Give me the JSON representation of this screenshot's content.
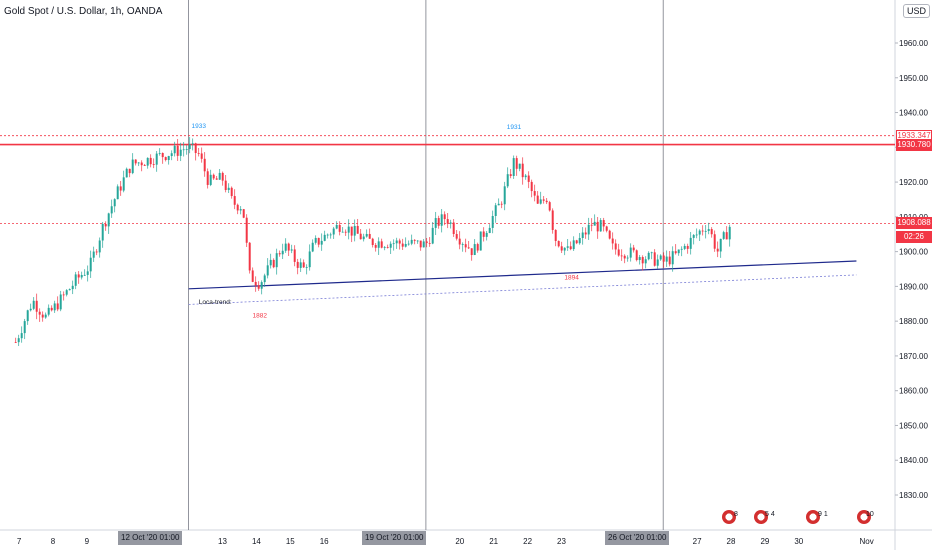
{
  "header": {
    "title": "Gold Spot / U.S. Dollar, 1h, OANDA",
    "currency_button": "USD"
  },
  "price_tags": [
    {
      "label": "1933.347",
      "style": "outline"
    },
    {
      "label": "1930.780",
      "style": "solid"
    },
    {
      "label": "1908.088",
      "style": "solid"
    },
    {
      "label": "02:26",
      "style": "solid"
    }
  ],
  "time_tags": [
    "12 Oct '20  01:00",
    "19 Oct '20  01:00",
    "26 Oct '20  01:00"
  ],
  "event_counts": [
    "8",
    "5  4",
    "9 1",
    "10"
  ],
  "colors": {
    "up": "#26a69a",
    "down": "#f23645",
    "trend": "#1f2a8c",
    "level": "#f23645",
    "current": "#f23645"
  },
  "chart_data": {
    "type": "candlestick",
    "symbol": "XAUUSD",
    "timeframe": "1h",
    "ylim": [
      1821,
      1970
    ],
    "y_ticks": [
      1830,
      1840,
      1850,
      1860,
      1870,
      1880,
      1890,
      1900,
      1910,
      1920,
      1930,
      1940,
      1950,
      1960
    ],
    "x_ticks": [
      {
        "label": "7",
        "day": 7
      },
      {
        "label": "8",
        "day": 8
      },
      {
        "label": "9",
        "day": 9
      },
      {
        "label": "13",
        "day": 13
      },
      {
        "label": "14",
        "day": 14
      },
      {
        "label": "15",
        "day": 15
      },
      {
        "label": "16",
        "day": 16
      },
      {
        "label": "20",
        "day": 20
      },
      {
        "label": "21",
        "day": 21
      },
      {
        "label": "22",
        "day": 22
      },
      {
        "label": "23",
        "day": 23
      },
      {
        "label": "27",
        "day": 27
      },
      {
        "label": "28",
        "day": 28
      },
      {
        "label": "29",
        "day": 29
      },
      {
        "label": "30",
        "day": 30
      },
      {
        "label": "Nov",
        "day": 32
      }
    ],
    "vertical_lines": [
      {
        "day": 12
      },
      {
        "day": 19
      },
      {
        "day": 26
      }
    ],
    "horizontal_levels": [
      {
        "price": 1933.347,
        "style": "dotted"
      },
      {
        "price": 1930.78,
        "style": "solid"
      },
      {
        "price": 1908.088,
        "style": "dotted"
      }
    ],
    "trendlines": [
      {
        "from": {
          "day": 12,
          "price": 1889.3
        },
        "to": {
          "day": 31.7,
          "price": 1897.3
        },
        "style": "solid"
      },
      {
        "from": {
          "day": 12,
          "price": 1884.8
        },
        "to": {
          "day": 31.7,
          "price": 1893.3
        },
        "style": "dotted"
      }
    ],
    "annotations": [
      {
        "text": "1933",
        "day": 12.3,
        "price": 1935.5,
        "color": "#2196f3"
      },
      {
        "text": "1931",
        "day": 21.6,
        "price": 1935.2,
        "color": "#2196f3"
      },
      {
        "text": "1882",
        "day": 14.1,
        "price": 1881,
        "color": "#f23645"
      },
      {
        "text": "1894",
        "day": 23.3,
        "price": 1892,
        "color": "#f23645"
      },
      {
        "text": "Loca-trend:",
        "day": 12.3,
        "price": 1885,
        "color": "#131722"
      }
    ],
    "path": [
      {
        "day": 6.9,
        "price": 1874
      },
      {
        "day": 7.4,
        "price": 1886
      },
      {
        "day": 7.8,
        "price": 1881
      },
      {
        "day": 8.3,
        "price": 1887
      },
      {
        "day": 8.7,
        "price": 1892
      },
      {
        "day": 9.1,
        "price": 1896
      },
      {
        "day": 9.5,
        "price": 1908
      },
      {
        "day": 9.9,
        "price": 1917
      },
      {
        "day": 10.3,
        "price": 1925
      },
      {
        "day": 12.0,
        "price": 1930
      },
      {
        "day": 12.3,
        "price": 1928
      },
      {
        "day": 12.6,
        "price": 1920
      },
      {
        "day": 13.0,
        "price": 1921
      },
      {
        "day": 13.3,
        "price": 1914
      },
      {
        "day": 13.6,
        "price": 1913
      },
      {
        "day": 13.8,
        "price": 1893
      },
      {
        "day": 14.1,
        "price": 1891
      },
      {
        "day": 14.5,
        "price": 1897
      },
      {
        "day": 14.8,
        "price": 1902
      },
      {
        "day": 15.1,
        "price": 1898
      },
      {
        "day": 15.4,
        "price": 1895
      },
      {
        "day": 15.7,
        "price": 1902
      },
      {
        "day": 16.1,
        "price": 1905
      },
      {
        "day": 16.5,
        "price": 1908
      },
      {
        "day": 16.8,
        "price": 1906
      },
      {
        "day": 17.3,
        "price": 1903
      },
      {
        "day": 19.0,
        "price": 1902
      },
      {
        "day": 19.3,
        "price": 1908
      },
      {
        "day": 19.6,
        "price": 1910
      },
      {
        "day": 20.0,
        "price": 1904
      },
      {
        "day": 20.4,
        "price": 1900
      },
      {
        "day": 20.8,
        "price": 1907
      },
      {
        "day": 21.2,
        "price": 1914
      },
      {
        "day": 21.6,
        "price": 1926
      },
      {
        "day": 22.0,
        "price": 1920
      },
      {
        "day": 22.3,
        "price": 1913
      },
      {
        "day": 22.6,
        "price": 1916
      },
      {
        "day": 22.8,
        "price": 1904
      },
      {
        "day": 23.2,
        "price": 1900
      },
      {
        "day": 23.6,
        "price": 1904
      },
      {
        "day": 23.9,
        "price": 1908
      },
      {
        "day": 24.2,
        "price": 1907
      },
      {
        "day": 24.5,
        "price": 1901
      },
      {
        "day": 26.0,
        "price": 1897
      },
      {
        "day": 26.4,
        "price": 1899
      },
      {
        "day": 26.7,
        "price": 1902
      },
      {
        "day": 27.0,
        "price": 1905
      },
      {
        "day": 27.3,
        "price": 1908
      },
      {
        "day": 27.6,
        "price": 1900
      },
      {
        "day": 28.0,
        "price": 1908
      }
    ]
  }
}
